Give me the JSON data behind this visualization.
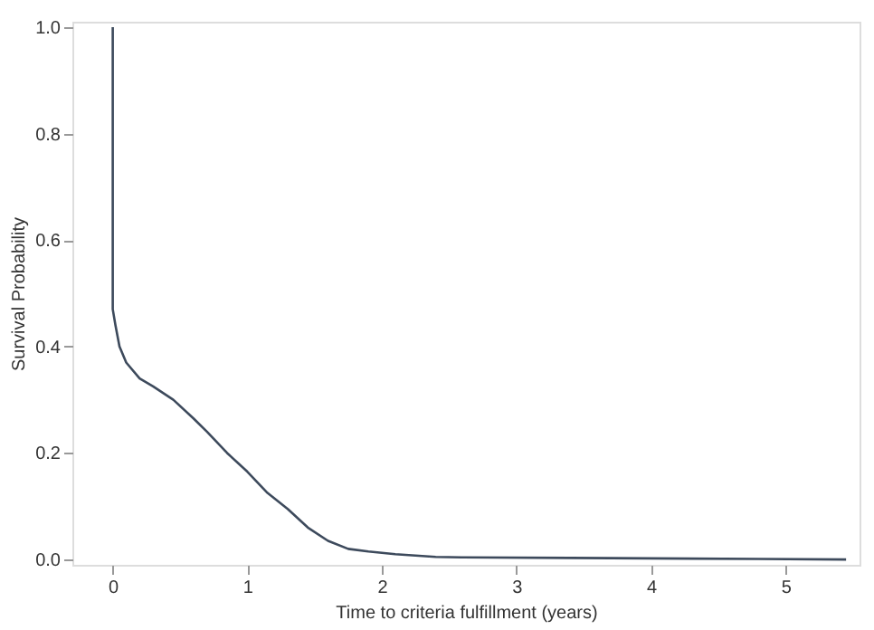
{
  "chart_data": {
    "type": "line",
    "xlabel": "Time to criteria fulfillment (years)",
    "ylabel": "Survival Probability",
    "x": [
      0,
      0,
      0.02,
      0.05,
      0.1,
      0.2,
      0.3,
      0.45,
      0.6,
      0.7,
      0.85,
      1.0,
      1.15,
      1.3,
      1.45,
      1.6,
      1.75,
      1.9,
      2.1,
      2.4,
      2.6,
      3.4,
      4.8,
      5.45
    ],
    "series": [
      {
        "color": "#3d4a5c",
        "values": [
          1.0,
          0.47,
          0.44,
          0.4,
          0.37,
          0.34,
          0.325,
          0.3,
          0.265,
          0.24,
          0.2,
          0.165,
          0.125,
          0.095,
          0.06,
          0.035,
          0.02,
          0.015,
          0.01,
          0.005,
          0.004,
          0.003,
          0.001,
          0.0
        ]
      }
    ],
    "xlim": [
      -0.3,
      5.55
    ],
    "xticks": [
      0,
      1,
      2,
      3,
      4,
      5
    ],
    "ylim": [
      -0.01,
      1.01
    ],
    "yticks": [
      {
        "value": 0,
        "label": "0.0"
      },
      {
        "value": 0.2,
        "label": "0.2"
      },
      {
        "value": 0.4,
        "label": "0.4"
      },
      {
        "value": 0.6,
        "label": "0.6"
      },
      {
        "value": 0.8,
        "label": "0.8"
      },
      {
        "value": 1.0,
        "label": "1.0"
      }
    ],
    "grid": false
  }
}
